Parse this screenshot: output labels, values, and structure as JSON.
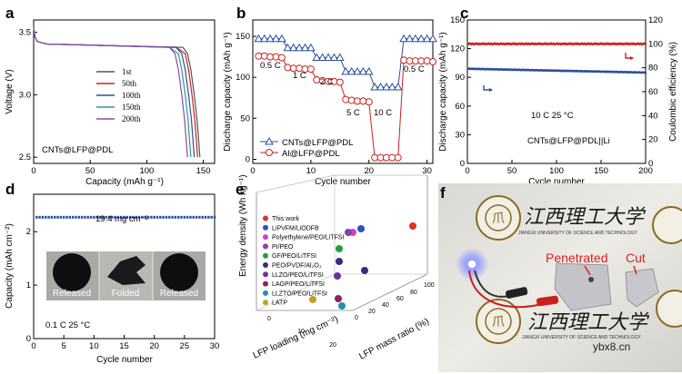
{
  "panel_labels": [
    "a",
    "b",
    "c",
    "d",
    "e",
    "f"
  ],
  "photo_texts": {
    "penetrated": "Penetrated",
    "cut": "Cut",
    "watermark": "ybx8.cn",
    "university": "JIANGXI UNIVERSITY OF SCIENCE AND TECHNOLOGY"
  },
  "chart_data": [
    {
      "id": "a",
      "type": "line",
      "xlabel": "Capacity (mAh g⁻¹)",
      "ylabel": "Voltage (V)",
      "xlim": [
        0,
        160
      ],
      "ylim": [
        2.45,
        3.6
      ],
      "xticks": [
        "0",
        "50",
        "100",
        "150"
      ],
      "yticks": [
        "2.5",
        "3.0",
        "3.5"
      ],
      "annotation": "CNTs@LFP@PDL",
      "series": [
        {
          "name": "1st",
          "color": "#555555",
          "end_capacity": 147
        },
        {
          "name": "50th",
          "color": "#cc2020",
          "end_capacity": 145
        },
        {
          "name": "100th",
          "color": "#2a4f9a",
          "end_capacity": 142
        },
        {
          "name": "150th",
          "color": "#2a9a8a",
          "end_capacity": 139
        },
        {
          "name": "200th",
          "color": "#8a4ab0",
          "end_capacity": 136
        }
      ]
    },
    {
      "id": "b",
      "type": "line",
      "xlabel": "Cycle number",
      "ylabel": "Discharge capacity (mAh g⁻¹)",
      "xlim": [
        0,
        31
      ],
      "ylim": [
        -5,
        170
      ],
      "xticks": [
        "0",
        "10",
        "20",
        "30"
      ],
      "yticks": [
        "0",
        "50",
        "100",
        "150"
      ],
      "rate_labels": [
        "0.5 C",
        "1 C",
        "2 C",
        "5 C",
        "10 C",
        "0.5 C"
      ],
      "series": [
        {
          "name": "CNTs@LFP@PDL",
          "color": "#2a4f9a",
          "marker": "triangle",
          "values": [
            147,
            147,
            147,
            147,
            147,
            136,
            136,
            136,
            136,
            136,
            124,
            124,
            124,
            124,
            124,
            107,
            107,
            107,
            107,
            107,
            88,
            88,
            88,
            88,
            88,
            147,
            147,
            147,
            147,
            147,
            147
          ]
        },
        {
          "name": "Al@LFP@PDL",
          "color": "#cc2020",
          "marker": "circle",
          "values": [
            126,
            126,
            125,
            125,
            124,
            112,
            111,
            111,
            110,
            110,
            97,
            96,
            95,
            95,
            94,
            73,
            72,
            71,
            71,
            70,
            2,
            2,
            2,
            2,
            2,
            121,
            120,
            120,
            120,
            120,
            119
          ]
        }
      ]
    },
    {
      "id": "c",
      "type": "scatter",
      "xlabel": "Cycle number",
      "ylabel": "Discharge capacity (mAh g⁻¹)",
      "y2label": "Coulombic efficiency (%)",
      "xlim": [
        0,
        200
      ],
      "ylim": [
        0,
        150
      ],
      "y2lim": [
        0,
        120
      ],
      "xticks": [
        "0",
        "50",
        "100",
        "150",
        "200"
      ],
      "yticks": [
        "0",
        "30",
        "60",
        "90",
        "120",
        "150"
      ],
      "y2ticks": [
        "0",
        "20",
        "40",
        "60",
        "80",
        "100",
        "120"
      ],
      "annotation_rate": "10 C  25 °C",
      "annotation_cell": "CNTs@LFP@PDL||Li",
      "series": [
        {
          "name": "Coulombic efficiency",
          "color": "#cc2020",
          "axis": "right",
          "value": 100
        },
        {
          "name": "Discharge capacity",
          "color": "#2a4f9a",
          "axis": "left",
          "start": 99,
          "end": 95
        }
      ]
    },
    {
      "id": "d",
      "type": "scatter",
      "xlabel": "Cycle number",
      "ylabel": "Capacity (mAh cm⁻²)",
      "xlim": [
        0,
        30
      ],
      "ylim": [
        0,
        2.7
      ],
      "xticks": [
        "0",
        "5",
        "10",
        "15",
        "20",
        "25",
        "30"
      ],
      "yticks": [
        "0",
        "1",
        "2"
      ],
      "value": 2.27,
      "color": "#2a4f9a",
      "loading_label": "19.4 mg cm⁻²",
      "condition_label": "0.1 C  25 °C",
      "inset_labels": [
        "Released",
        "Folded",
        "Released"
      ]
    },
    {
      "id": "e",
      "type": "scatter",
      "xlabel": "LFP loading (mg cm⁻²)",
      "zlabel": "LFP mass ratio (%)",
      "ylabel": "Energy density (Wh kg⁻¹)",
      "xticks": [
        "0",
        "10",
        "20"
      ],
      "zticks": [
        "0",
        "20",
        "40",
        "60",
        "80",
        "100"
      ],
      "legend": [
        {
          "name": "This work",
          "color": "#e03020"
        },
        {
          "name": "LiPVFM/LiODFB",
          "color": "#3050c0"
        },
        {
          "name": "Polyethylene/PEO/LiTFSI",
          "color": "#d040d0"
        },
        {
          "name": "PI/PEO",
          "color": "#8a3cb0"
        },
        {
          "name": "GF/PEO/LiTFSI",
          "color": "#20a040"
        },
        {
          "name": "PEO/PVDF/Al₂O₃",
          "color": "#303080"
        },
        {
          "name": "LLZO/PEO/LiTFSI",
          "color": "#7030a0"
        },
        {
          "name": "LAGP/PEO/LiTFSI",
          "color": "#902060"
        },
        {
          "name": "LLZTO/PEO/LiTFSI",
          "color": "#2090b0"
        },
        {
          "name": "LATP",
          "color": "#c0a020"
        }
      ]
    }
  ]
}
